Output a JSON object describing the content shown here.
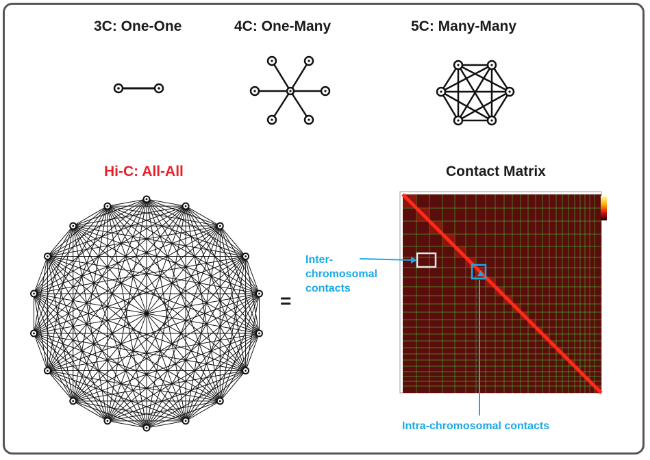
{
  "titles": {
    "three_c": "3C: One-One",
    "four_c": "4C: One-Many",
    "five_c": "5C: Many-Many",
    "hic": "Hi-C: All-All",
    "contact_matrix": "Contact Matrix"
  },
  "equals": "=",
  "annotations": {
    "inter_line1": "Inter-",
    "inter_line2": "chromosomal",
    "inter_line3": "contacts",
    "intra": "Intra-chromosomal contacts"
  },
  "hic_node_count": 18,
  "colors": {
    "hic_title": "#e8202a",
    "annotation": "#19a9e6",
    "matrix_bg": "#5a0d0b",
    "matrix_diagonal": "#ff2a1a",
    "matrix_grid": "#3fd43f",
    "inter_box": "#e8e8e8",
    "intra_box": "#19a9e6",
    "frame_border": "#555555"
  }
}
